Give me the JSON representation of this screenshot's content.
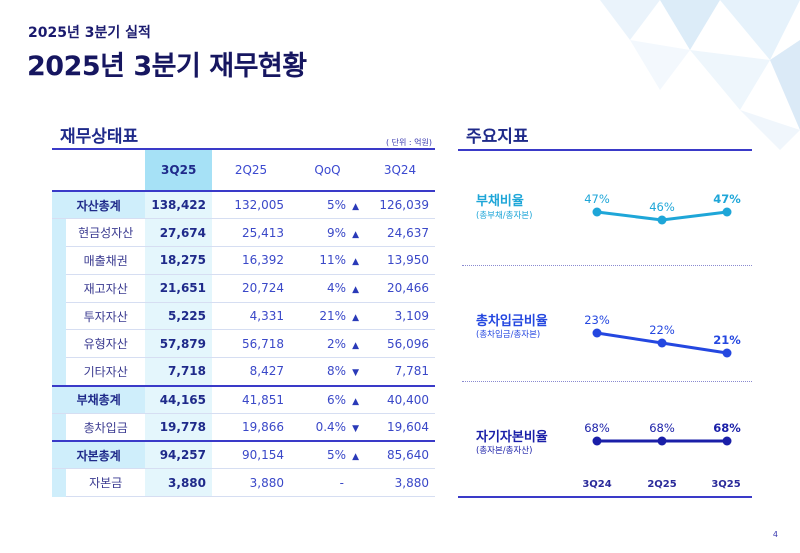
{
  "header": {
    "subtitle": "2025년 3분기 실적",
    "title": "2025년 3분기 재무현황"
  },
  "balance_sheet": {
    "title": "재무상태표",
    "unit": "( 단위 : 억원)",
    "columns": [
      "3Q25",
      "2Q25",
      "QoQ",
      "3Q24"
    ],
    "rows": [
      {
        "label": "자산총계",
        "group": true,
        "q3_25": "138,422",
        "q2_25": "132,005",
        "qoq": "5%",
        "dir": "up",
        "q3_24": "126,039"
      },
      {
        "label": "현금성자산",
        "group": false,
        "q3_25": "27,674",
        "q2_25": "25,413",
        "qoq": "9%",
        "dir": "up",
        "q3_24": "24,637"
      },
      {
        "label": "매출채권",
        "group": false,
        "q3_25": "18,275",
        "q2_25": "16,392",
        "qoq": "11%",
        "dir": "up",
        "q3_24": "13,950"
      },
      {
        "label": "재고자산",
        "group": false,
        "q3_25": "21,651",
        "q2_25": "20,724",
        "qoq": "4%",
        "dir": "up",
        "q3_24": "20,466"
      },
      {
        "label": "투자자산",
        "group": false,
        "q3_25": "5,225",
        "q2_25": "4,331",
        "qoq": "21%",
        "dir": "up",
        "q3_24": "3,109"
      },
      {
        "label": "유형자산",
        "group": false,
        "q3_25": "57,879",
        "q2_25": "56,718",
        "qoq": "2%",
        "dir": "up",
        "q3_24": "56,096"
      },
      {
        "label": "기타자산",
        "group": false,
        "q3_25": "7,718",
        "q2_25": "8,427",
        "qoq": "8%",
        "dir": "down",
        "q3_24": "7,781"
      },
      {
        "label": "부채총계",
        "group": true,
        "q3_25": "44,165",
        "q2_25": "41,851",
        "qoq": "6%",
        "dir": "up",
        "q3_24": "40,400"
      },
      {
        "label": "총차입금",
        "group": false,
        "q3_25": "19,778",
        "q2_25": "19,866",
        "qoq": "0.4%",
        "dir": "down",
        "q3_24": "19,604"
      },
      {
        "label": "자본총계",
        "group": true,
        "q3_25": "94,257",
        "q2_25": "90,154",
        "qoq": "5%",
        "dir": "up",
        "q3_24": "85,640"
      },
      {
        "label": "자본금",
        "group": false,
        "q3_25": "3,880",
        "q2_25": "3,880",
        "qoq": "-",
        "dir": "none",
        "q3_24": "3,880"
      }
    ]
  },
  "indicators": {
    "title": "주요지표",
    "x_labels": [
      "3Q24",
      "2Q25",
      "3Q25"
    ],
    "metrics": [
      {
        "name": "부채비율",
        "formula": "(총부채/총자본)",
        "values": [
          47,
          46,
          47
        ],
        "labels": [
          "47%",
          "46%",
          "47%"
        ],
        "color": "#1ea6d8"
      },
      {
        "name": "총차입금비율",
        "formula": "(총차입금/총자본)",
        "values": [
          23,
          22,
          21
        ],
        "labels": [
          "23%",
          "22%",
          "21%"
        ],
        "color": "#2447e0"
      },
      {
        "name": "자기자본비율",
        "formula": "(총자본/총자산)",
        "values": [
          68,
          68,
          68
        ],
        "labels": [
          "68%",
          "68%",
          "68%"
        ],
        "color": "#1a1fa8"
      }
    ]
  },
  "page_number": "4",
  "icons": {
    "up": "triangle-up-icon",
    "down": "triangle-down-icon"
  }
}
